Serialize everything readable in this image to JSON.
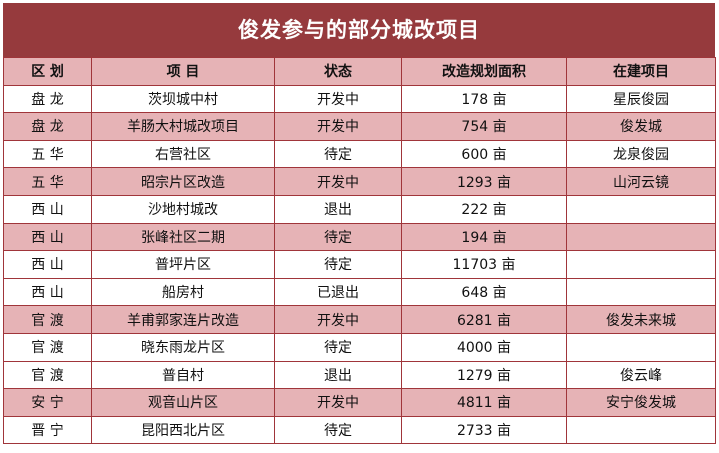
{
  "title": "俊发参与的部分城改项目",
  "headers": [
    "区 划",
    "项 目",
    "状态",
    "改造规划面积",
    "在建项目"
  ],
  "rows": [
    {
      "district": "盘 龙",
      "project": "茨坝城中村",
      "status": "开发中",
      "area": "178 亩",
      "building": "星辰俊园"
    },
    {
      "district": "盘 龙",
      "project": "羊肠大村城改项目",
      "status": "开发中",
      "area": "754 亩",
      "building": "俊发城"
    },
    {
      "district": "五 华",
      "project": "右营社区",
      "status": "待定",
      "area": "600 亩",
      "building": "龙泉俊园"
    },
    {
      "district": "五 华",
      "project": "昭宗片区改造",
      "status": "开发中",
      "area": "1293 亩",
      "building": "山河云镜"
    },
    {
      "district": "西 山",
      "project": "沙地村城改",
      "status": "退出",
      "area": "222 亩",
      "building": ""
    },
    {
      "district": "西 山",
      "project": "张峰社区二期",
      "status": "待定",
      "area": "194 亩",
      "building": ""
    },
    {
      "district": "西 山",
      "project": "普坪片区",
      "status": "待定",
      "area": "11703 亩",
      "building": ""
    },
    {
      "district": "西 山",
      "project": "船房村",
      "status": "已退出",
      "area": "648 亩",
      "building": ""
    },
    {
      "district": "官 渡",
      "project": "羊甫郭家连片改造",
      "status": "开发中",
      "area": "6281 亩",
      "building": "俊发未来城"
    },
    {
      "district": "官 渡",
      "project": "晓东雨龙片区",
      "status": "待定",
      "area": "4000 亩",
      "building": ""
    },
    {
      "district": "官 渡",
      "project": "普自村",
      "status": "退出",
      "area": "1279 亩",
      "building": "俊云峰"
    },
    {
      "district": "安 宁",
      "project": "观音山片区",
      "status": "开发中",
      "area": "4811 亩",
      "building": "安宁俊发城"
    },
    {
      "district": "晋 宁",
      "project": "昆阳西北片区",
      "status": "待定",
      "area": "2733 亩",
      "building": ""
    }
  ],
  "row_shading": [
    "plain",
    "alt",
    "plain",
    "alt",
    "plain",
    "alt",
    "plain",
    "plain",
    "alt",
    "plain",
    "plain",
    "alt",
    "plain"
  ]
}
